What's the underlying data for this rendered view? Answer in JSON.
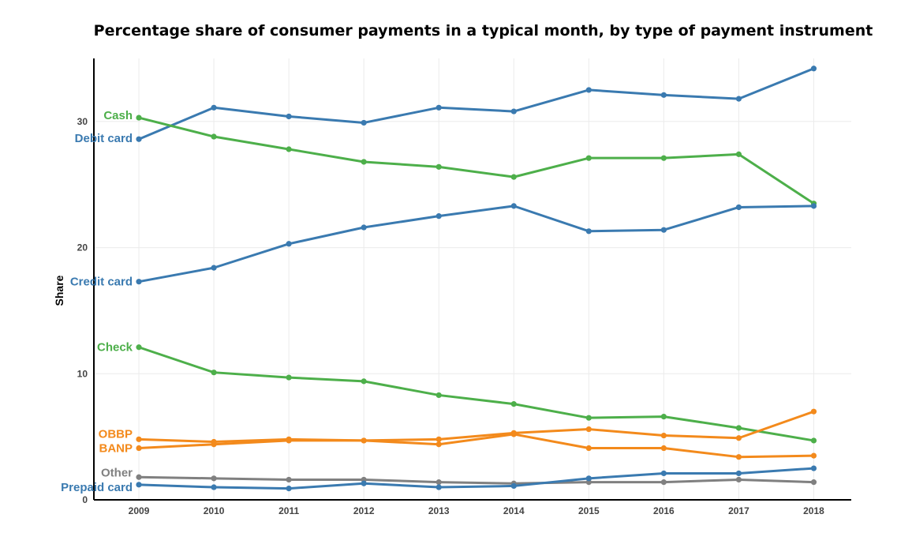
{
  "chart_data": {
    "type": "line",
    "title": "Percentage share of consumer payments in a typical month, by type of payment instrument",
    "xlabel": "",
    "ylabel": "Share",
    "x": [
      2009,
      2010,
      2011,
      2012,
      2013,
      2014,
      2015,
      2016,
      2017,
      2018
    ],
    "xlim": [
      2008.4,
      2018.5
    ],
    "ylim": [
      0,
      35
    ],
    "yticks": [
      0,
      10,
      20,
      30
    ],
    "grid": true,
    "legend": "direct labels at left",
    "series": [
      {
        "name": "Debit card",
        "color": "#3a7ab0",
        "values": [
          28.6,
          31.1,
          30.4,
          29.9,
          31.1,
          30.8,
          32.5,
          32.1,
          31.8,
          34.2
        ]
      },
      {
        "name": "Cash",
        "color": "#4daf4a",
        "values": [
          30.3,
          28.8,
          27.8,
          26.8,
          26.4,
          25.6,
          27.1,
          27.1,
          27.4,
          23.5
        ]
      },
      {
        "name": "Credit card",
        "color": "#3a7ab0",
        "values": [
          17.3,
          18.4,
          20.3,
          21.6,
          22.5,
          23.3,
          21.3,
          21.4,
          23.2,
          23.3
        ]
      },
      {
        "name": "Check",
        "color": "#4daf4a",
        "values": [
          12.1,
          10.1,
          9.7,
          9.4,
          8.3,
          7.6,
          6.5,
          6.6,
          5.7,
          4.7
        ]
      },
      {
        "name": "OBBP",
        "color": "#f38a1c",
        "values": [
          4.8,
          4.6,
          4.8,
          4.7,
          4.8,
          5.3,
          5.6,
          5.1,
          4.9,
          7.0
        ]
      },
      {
        "name": "BANP",
        "color": "#f38a1c",
        "values": [
          4.1,
          4.4,
          4.7,
          4.7,
          4.4,
          5.2,
          4.1,
          4.1,
          3.4,
          3.5
        ]
      },
      {
        "name": "Other",
        "color": "#808080",
        "values": [
          1.8,
          1.7,
          1.6,
          1.6,
          1.4,
          1.3,
          1.4,
          1.4,
          1.6,
          1.4
        ]
      },
      {
        "name": "Prepaid card",
        "color": "#3a7ab0",
        "values": [
          1.2,
          1.0,
          0.9,
          1.3,
          1.0,
          1.1,
          1.7,
          2.1,
          2.1,
          2.5
        ]
      }
    ]
  }
}
